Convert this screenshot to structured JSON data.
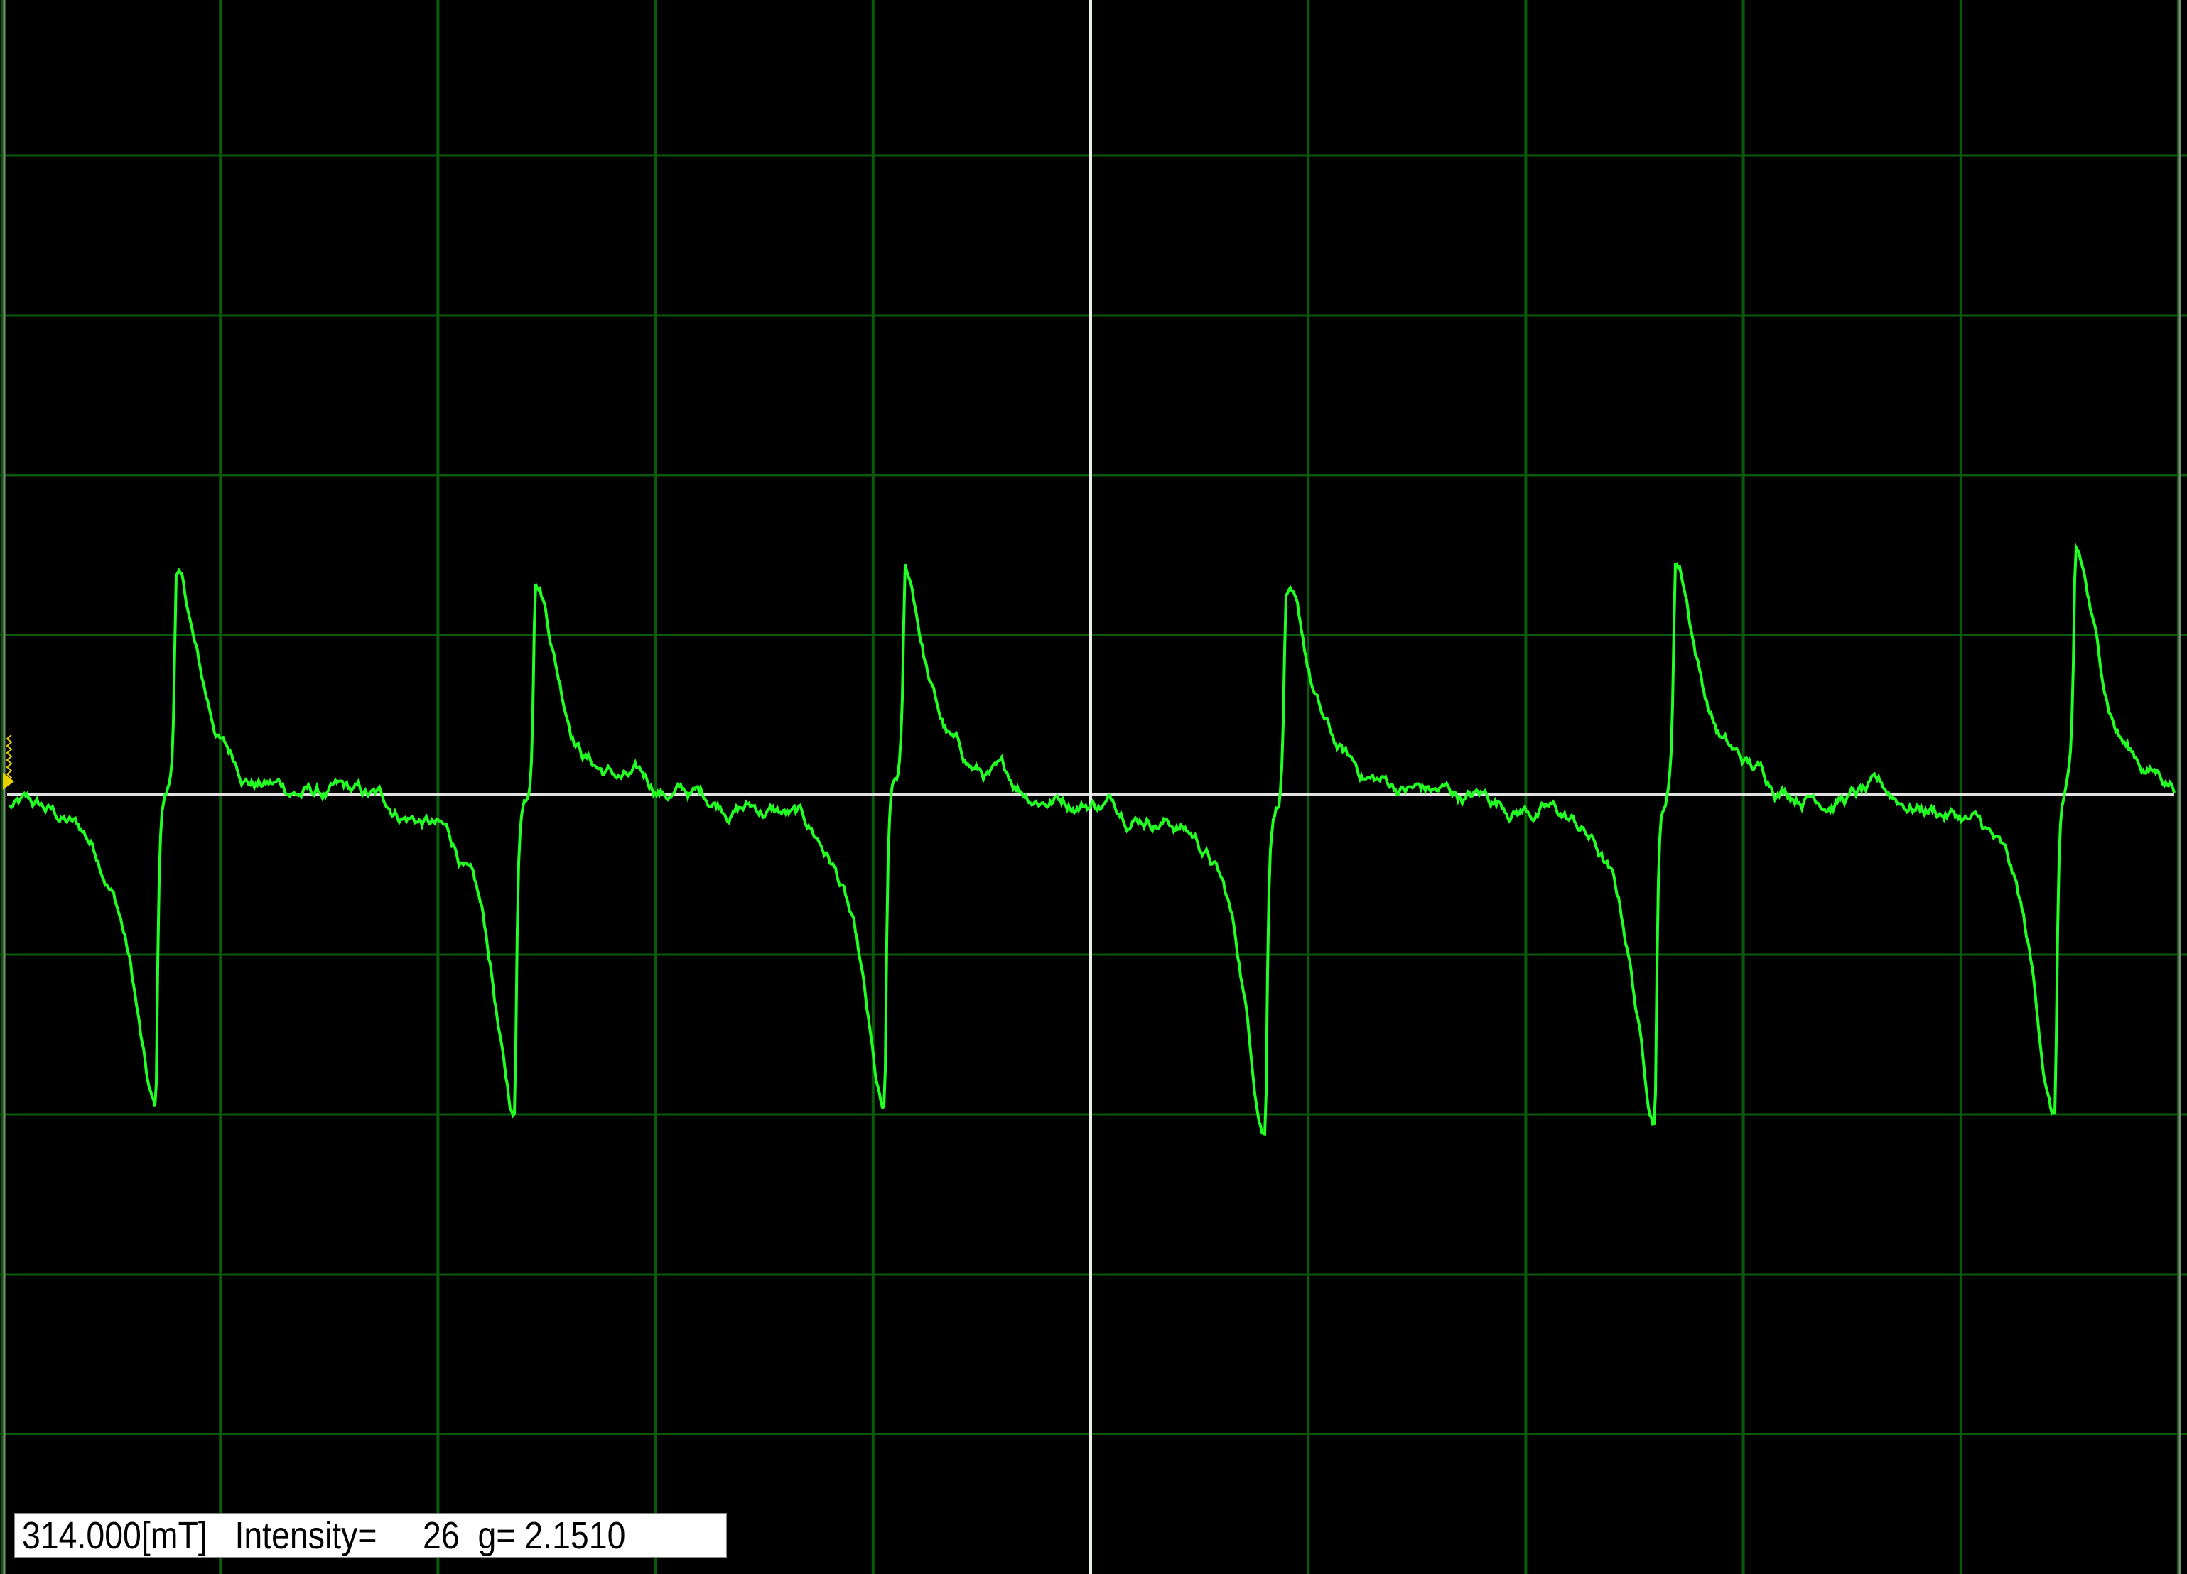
{
  "chart_data": {
    "type": "line",
    "title": "",
    "xlabel": "",
    "ylabel": "",
    "grid": true,
    "x_divisions": 10,
    "y_divisions": 10,
    "xlim_divisions": [
      0,
      10
    ],
    "ylim_divisions": [
      -5,
      5
    ],
    "baseline_division": 0,
    "cursor_x_division": 5,
    "series": [
      {
        "type": "first-derivative absorption lines",
        "lines": [
          {
            "center": 0.75,
            "positive_peak": 1.38,
            "negative_peak": -1.99
          },
          {
            "center": 2.4,
            "positive_peak": 1.44,
            "negative_peak": -2.02
          },
          {
            "center": 4.1,
            "positive_peak": 1.33,
            "negative_peak": -2.06
          },
          {
            "center": 5.85,
            "positive_peak": 1.3,
            "negative_peak": -2.06
          },
          {
            "center": 7.64,
            "positive_peak": 1.49,
            "negative_peak": -1.98
          },
          {
            "center": 9.48,
            "positive_peak": 1.44,
            "negative_peak": -2.02
          }
        ],
        "noise_amplitude": 0.06
      }
    ]
  },
  "colors": {
    "background": "#000000",
    "grid": "#0a5a0a",
    "trace": "#22ff22",
    "baseline": "#e0e0e0",
    "cursor": "#e8f0e8",
    "marker": "#e8d000"
  },
  "readout": {
    "field": "314.000[mT]",
    "intensity_label": "Intensity=",
    "intensity_value": "26",
    "g_label": "g=",
    "g_value": "2.1510"
  }
}
